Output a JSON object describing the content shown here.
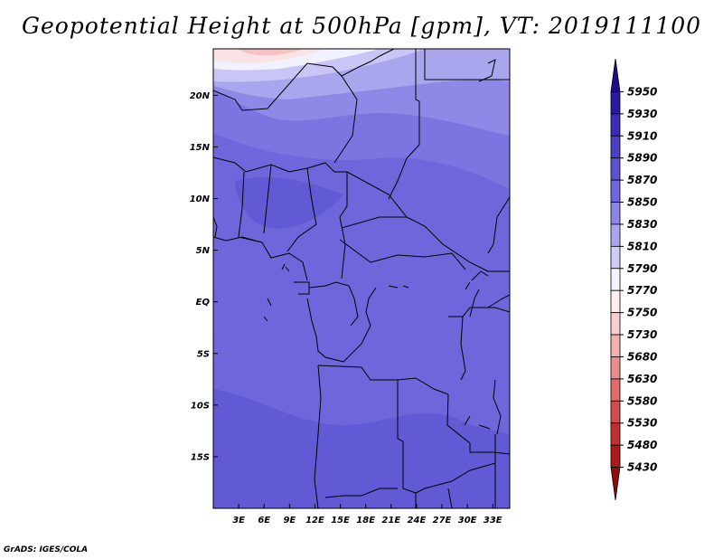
{
  "title": "Geopotential Height at 500hPa [gpm], VT: 2019111100",
  "credit": "GrADS: IGES/COLA",
  "map": {
    "lat_labels": [
      {
        "label": "20N",
        "lat": 20
      },
      {
        "label": "15N",
        "lat": 15
      },
      {
        "label": "10N",
        "lat": 10
      },
      {
        "label": "5N",
        "lat": 5
      },
      {
        "label": "EQ",
        "lat": 0
      },
      {
        "label": "5S",
        "lat": -5
      },
      {
        "label": "10S",
        "lat": -10
      },
      {
        "label": "15S",
        "lat": -15
      }
    ],
    "lon_labels": [
      {
        "label": "3E",
        "lon": 3
      },
      {
        "label": "6E",
        "lon": 6
      },
      {
        "label": "9E",
        "lon": 9
      },
      {
        "label": "12E",
        "lon": 12
      },
      {
        "label": "15E",
        "lon": 15
      },
      {
        "label": "18E",
        "lon": 18
      },
      {
        "label": "21E",
        "lon": 21
      },
      {
        "label": "24E",
        "lon": 24
      },
      {
        "label": "27E",
        "lon": 27
      },
      {
        "label": "30E",
        "lon": 30
      },
      {
        "label": "33E",
        "lon": 33
      }
    ],
    "lon_range": [
      0,
      35
    ],
    "lat_range": [
      -20,
      24.5
    ]
  },
  "colorbar": {
    "levels": [
      "5950",
      "5930",
      "5910",
      "5890",
      "5870",
      "5850",
      "5830",
      "5810",
      "5790",
      "5770",
      "5750",
      "5730",
      "5680",
      "5630",
      "5580",
      "5530",
      "5480",
      "5430"
    ],
    "colors": [
      "#1e0c8c",
      "#2a1aa0",
      "#3a2cb4",
      "#4b3fc3",
      "#5c52cf",
      "#6e66da",
      "#8c86e6",
      "#aaa6ee",
      "#cfcdf7",
      "#f4f4ff",
      "#ffeeee",
      "#fbcfcf",
      "#f3b0b0",
      "#e98e8e",
      "#de6c6c",
      "#d14c4c",
      "#c22f2f",
      "#ad1a1a",
      "#8e0c0c"
    ]
  },
  "colors": {
    "base_field": "#6e66da",
    "border": "#000000"
  }
}
